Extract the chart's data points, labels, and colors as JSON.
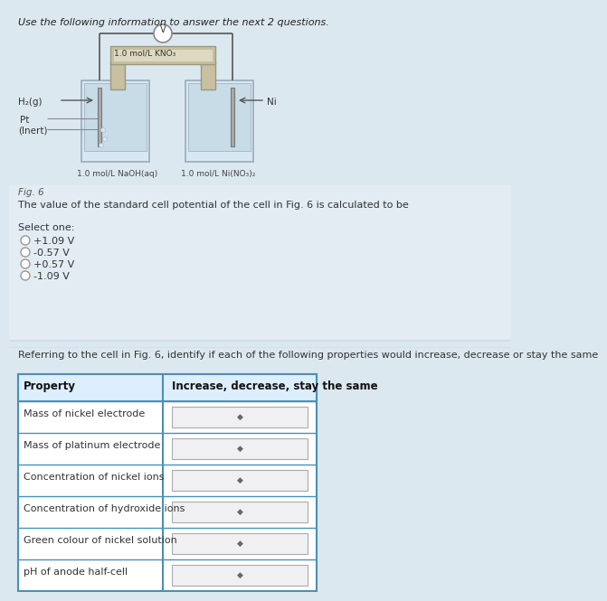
{
  "bg_color": "#dce8f0",
  "bg_color2": "#e2ecf2",
  "white": "#ffffff",
  "border_color": "#4a90b8",
  "title": "Use the following information to answer the next 2 questions.",
  "fig_label": "Fig. 6",
  "question1": "The value of the standard cell potential of the cell in Fig. 6 is calculated to be",
  "select_one": "Select one:",
  "options": [
    "+1.09 V",
    "-0.57 V",
    "+0.57 V",
    "-1.09 V"
  ],
  "question2": "Referring to the cell in Fig. 6, identify if each of the following properties would increase, decrease or stay the same",
  "table_header_col1": "Property",
  "table_header_col2": "Increase, decrease, stay the same",
  "table_rows": [
    "Mass of nickel electrode",
    "Mass of platinum electrode",
    "Concentration of nickel ions",
    "Concentration of hydroxide ions",
    "Green colour of nickel solution",
    "pH of anode half-cell"
  ],
  "h2g": "H₂(g)",
  "pt": "Pt",
  "inert": "(Inert)",
  "ni": "Ni",
  "kno3": "1.0 mol/L KNO₃",
  "naoh": "1.0 mol/L NaOH(aq)",
  "nino3": "1.0 mol/L Ni(NO₃)₂"
}
